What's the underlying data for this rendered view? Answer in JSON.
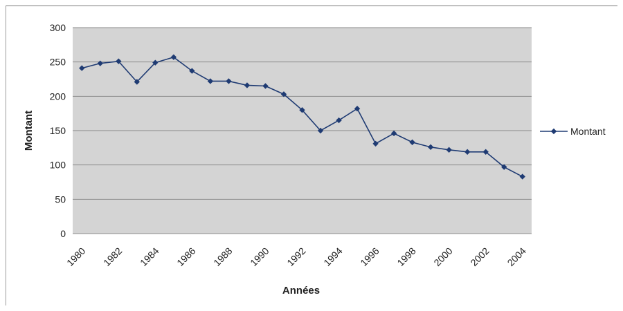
{
  "chart_data": {
    "type": "line",
    "title": "",
    "xlabel": "Années",
    "ylabel": "Montant",
    "ylim": [
      0,
      300
    ],
    "yticks": [
      0,
      50,
      100,
      150,
      200,
      250,
      300
    ],
    "xticks": [
      "1980",
      "1982",
      "1984",
      "1986",
      "1988",
      "1990",
      "1992",
      "1994",
      "1996",
      "1998",
      "2000",
      "2002",
      "2004"
    ],
    "grid": true,
    "legend_position": "right",
    "plot_background": "#d4d4d4",
    "series": [
      {
        "name": "Montant",
        "color": "#1f3b73",
        "marker": "diamond",
        "x": [
          1980,
          1981,
          1982,
          1983,
          1984,
          1985,
          1986,
          1987,
          1988,
          1989,
          1990,
          1991,
          1992,
          1993,
          1994,
          1995,
          1996,
          1997,
          1998,
          1999,
          2000,
          2001,
          2002,
          2003,
          2004
        ],
        "values": [
          241,
          248,
          251,
          221,
          249,
          257,
          237,
          222,
          222,
          216,
          215,
          203,
          180,
          150,
          165,
          182,
          131,
          146,
          133,
          126,
          122,
          119,
          119,
          97,
          83
        ]
      }
    ]
  }
}
